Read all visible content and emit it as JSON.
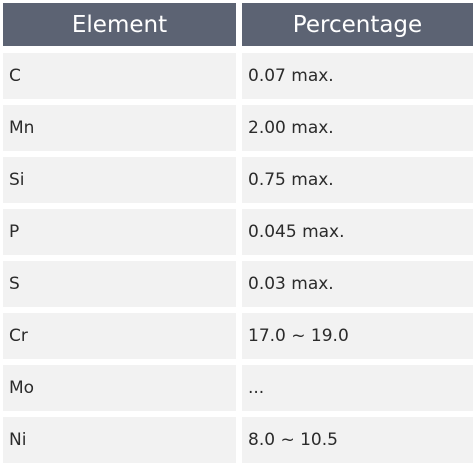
{
  "table": {
    "headers": [
      "Element",
      "Percentage"
    ],
    "rows": [
      {
        "element": "C",
        "percentage": "0.07 max."
      },
      {
        "element": "Mn",
        "percentage": "2.00 max."
      },
      {
        "element": "Si",
        "percentage": "0.75 max."
      },
      {
        "element": "P",
        "percentage": "0.045 max."
      },
      {
        "element": "S",
        "percentage": "0.03 max."
      },
      {
        "element": "Cr",
        "percentage": "17.0 ~ 19.0"
      },
      {
        "element": "Mo",
        "percentage": "..."
      },
      {
        "element": "Ni",
        "percentage": "8.0 ~ 10.5"
      }
    ]
  }
}
